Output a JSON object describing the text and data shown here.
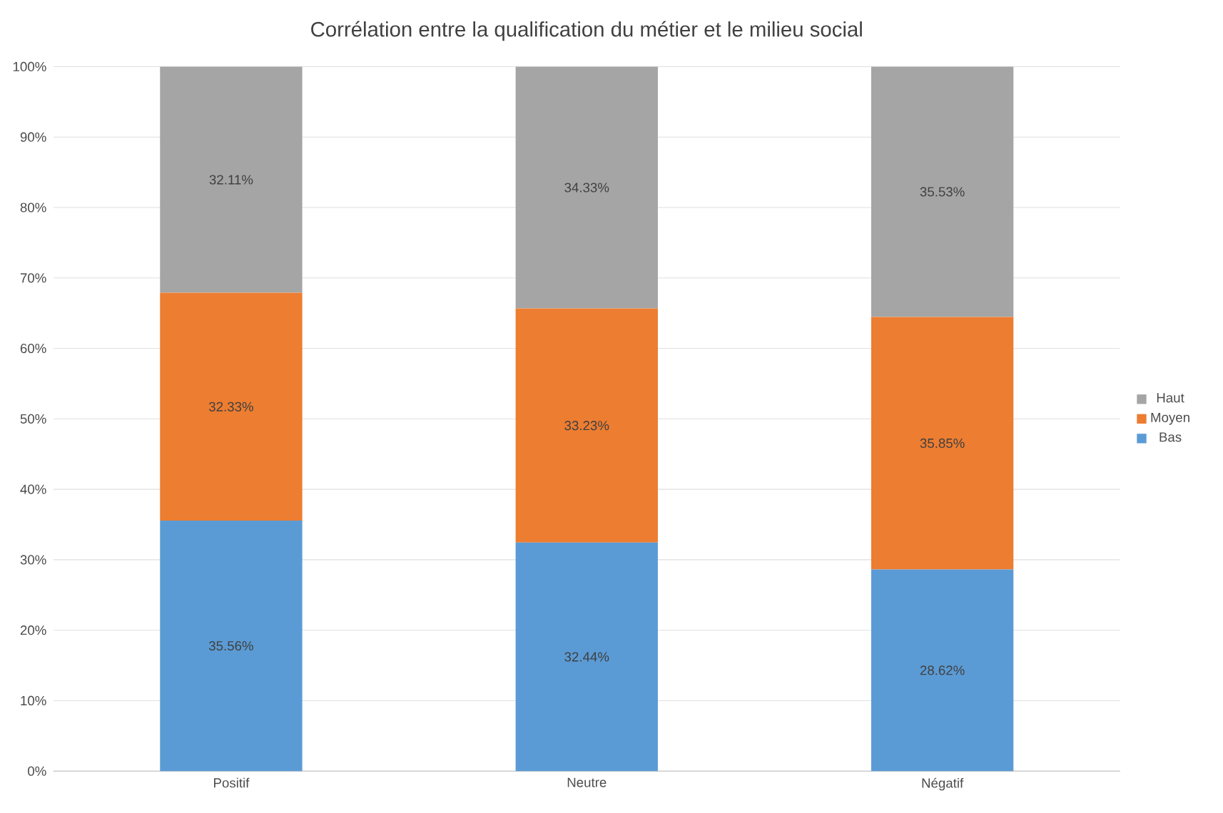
{
  "chart_data": {
    "type": "bar",
    "stacked": true,
    "title": "Corrélation entre la qualification du métier et le milieu social",
    "categories": [
      "Positif",
      "Neutre",
      "Négatif"
    ],
    "series": [
      {
        "name": "Bas",
        "color": "#5b9bd5",
        "values": [
          35.56,
          32.44,
          28.62
        ],
        "value_labels": [
          "35.56%",
          "32.44%",
          "28.62%"
        ]
      },
      {
        "name": "Moyen",
        "color": "#ed7d31",
        "values": [
          32.33,
          33.23,
          35.85
        ],
        "value_labels": [
          "32.33%",
          "33.23%",
          "35.85%"
        ]
      },
      {
        "name": "Haut",
        "color": "#a5a5a5",
        "values": [
          32.11,
          34.33,
          35.53
        ],
        "value_labels": [
          "32.11%",
          "34.33%",
          "35.53%"
        ]
      }
    ],
    "ylim": [
      0,
      100
    ],
    "yticks": [
      {
        "value": 0,
        "label": "0%"
      },
      {
        "value": 10,
        "label": "10%"
      },
      {
        "value": 20,
        "label": "20%"
      },
      {
        "value": 30,
        "label": "30%"
      },
      {
        "value": 40,
        "label": "40%"
      },
      {
        "value": 50,
        "label": "50%"
      },
      {
        "value": 60,
        "label": "60%"
      },
      {
        "value": 70,
        "label": "70%"
      },
      {
        "value": 80,
        "label": "80%"
      },
      {
        "value": 90,
        "label": "90%"
      },
      {
        "value": 100,
        "label": "100%"
      }
    ],
    "grid": "y",
    "legend": "right"
  }
}
